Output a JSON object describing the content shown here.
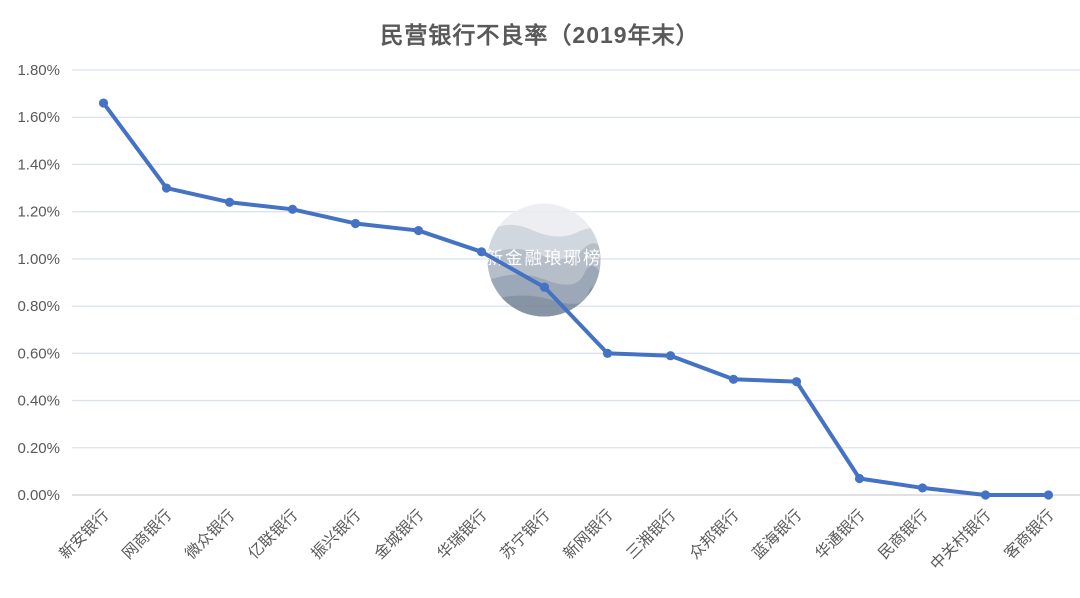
{
  "page": {
    "background_color": "#ffffff"
  },
  "chart_data": {
    "type": "line",
    "title": "民营银行不良率（2019年末）",
    "xlabel": "",
    "ylabel": "",
    "categories": [
      "新安银行",
      "网商银行",
      "微众银行",
      "亿联银行",
      "振兴银行",
      "金城银行",
      "华瑞银行",
      "苏宁银行",
      "新网银行",
      "三湘银行",
      "众邦银行",
      "蓝海银行",
      "华通银行",
      "民商银行",
      "中关村银行",
      "客商银行"
    ],
    "series": [
      {
        "name": "不良率",
        "values": [
          1.66,
          1.3,
          1.24,
          1.21,
          1.15,
          1.12,
          1.03,
          0.88,
          0.6,
          0.59,
          0.49,
          0.48,
          0.07,
          0.03,
          0.0,
          0.0
        ]
      }
    ],
    "value_unit": "%",
    "ylim": [
      0,
      1.8
    ],
    "ytick_step": 0.2,
    "ytick_labels": [
      "0.00%",
      "0.20%",
      "0.40%",
      "0.60%",
      "0.80%",
      "1.00%",
      "1.20%",
      "1.40%",
      "1.60%",
      "1.80%"
    ],
    "grid": true,
    "legend_position": "none",
    "line_color": "#4472C4",
    "marker_shape": "circle",
    "x_label_rotation_deg": -45
  },
  "axis_style": {
    "tick_label_color": "#595959",
    "grid_color": "#dae1f0",
    "axis_line_color": "#d7d7d7"
  },
  "watermark": {
    "text": "新金融琅琊榜",
    "shape": "circle-with-waves",
    "text_color": "#ffffff",
    "band_colors": [
      "#eaedf1",
      "#ccd3dc",
      "#adb7c4",
      "#929fb0",
      "#7b899b"
    ]
  }
}
